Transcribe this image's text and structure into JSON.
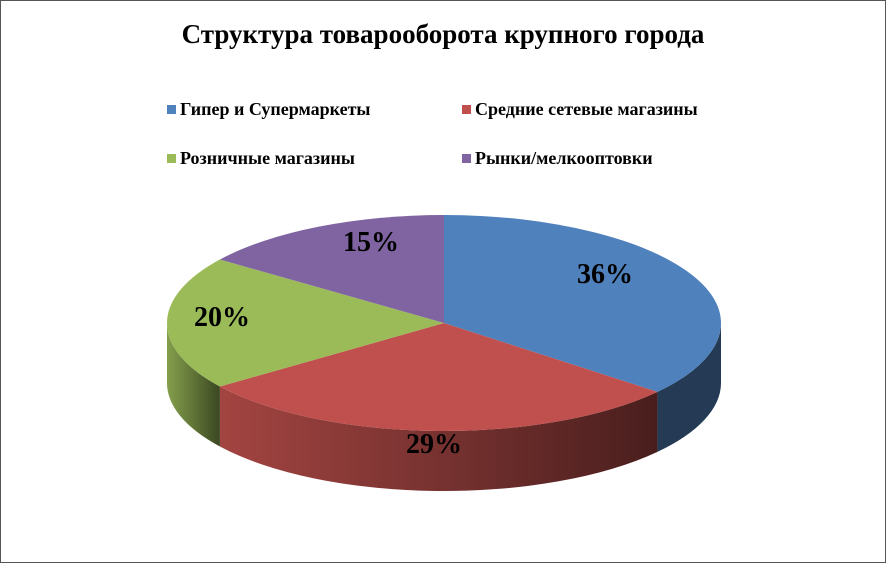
{
  "chart_data": {
    "type": "pie",
    "title": "Структура товарооборота крупного города",
    "categories": [
      "Гипер и Супермаркеты",
      "Средние сетевые магазины",
      "Розничные магазины",
      "Рынки/мелкооптовки"
    ],
    "values": [
      36,
      29,
      20,
      15
    ],
    "data_labels": [
      "36%",
      "29%",
      "20%",
      "15%"
    ],
    "colors": [
      "#4f81bd",
      "#c0504d",
      "#9bbb59",
      "#8064a2"
    ],
    "legend_position": "top",
    "style": "3d"
  }
}
